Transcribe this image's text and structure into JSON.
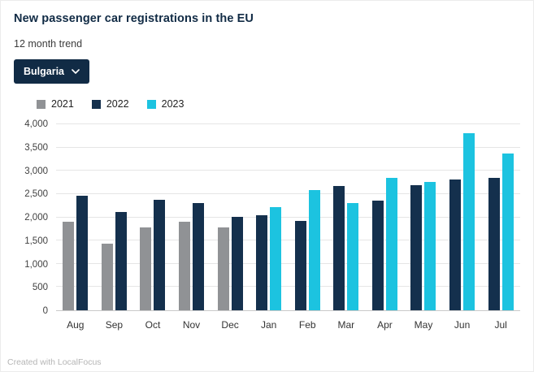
{
  "header": {
    "title": "New passenger car registrations in the EU",
    "subtitle": "12 month trend"
  },
  "filter": {
    "selected": "Bulgaria",
    "chevron_icon": "chevron-down"
  },
  "legend": {
    "items": [
      {
        "label": "2021",
        "color": "#909295"
      },
      {
        "label": "2022",
        "color": "#14304d"
      },
      {
        "label": "2023",
        "color": "#1cc3e0"
      }
    ]
  },
  "chart_data": {
    "type": "bar",
    "title": "New passenger car registrations in the EU",
    "subtitle": "12 month trend",
    "categories": [
      "Aug",
      "Sep",
      "Oct",
      "Nov",
      "Dec",
      "Jan",
      "Feb",
      "Mar",
      "Apr",
      "May",
      "Jun",
      "Jul"
    ],
    "series": [
      {
        "name": "2021",
        "color": "#909295",
        "values": [
          1900,
          1430,
          1790,
          1910,
          1780,
          null,
          null,
          null,
          null,
          null,
          null,
          null
        ]
      },
      {
        "name": "2022",
        "color": "#14304d",
        "values": [
          2470,
          2110,
          2370,
          2300,
          2010,
          2040,
          1930,
          2680,
          2350,
          2690,
          2810,
          2840
        ]
      },
      {
        "name": "2023",
        "color": "#1cc3e0",
        "values": [
          null,
          null,
          null,
          null,
          null,
          2220,
          2580,
          2310,
          2840,
          2760,
          3800,
          3380
        ]
      }
    ],
    "ylim": [
      0,
      4000
    ],
    "ytick_step": 500,
    "yticks": [
      "0",
      "500",
      "1,000",
      "1,500",
      "2,000",
      "2,500",
      "3,000",
      "3,500",
      "4,000"
    ],
    "grid": true,
    "legend_position": "top"
  },
  "footer": {
    "credit": "Created with LocalFocus"
  }
}
